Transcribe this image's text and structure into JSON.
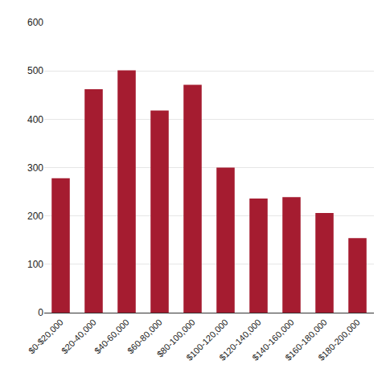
{
  "chart_data": {
    "type": "bar",
    "categories": [
      "$0-$20,000",
      "$20-40,000",
      "$40-60,000",
      "$60-80,000",
      "$80-100,000",
      "$100-120,000",
      "$120-140,000",
      "$140-160,000",
      "$160-180,000",
      "$180-200,000"
    ],
    "values": [
      278,
      462,
      501,
      418,
      471,
      300,
      236,
      239,
      206,
      154
    ],
    "color": "#a51c30",
    "ylim": [
      0,
      600
    ],
    "yticks": [
      0,
      100,
      200,
      300,
      400,
      500,
      600
    ],
    "grid": true
  }
}
